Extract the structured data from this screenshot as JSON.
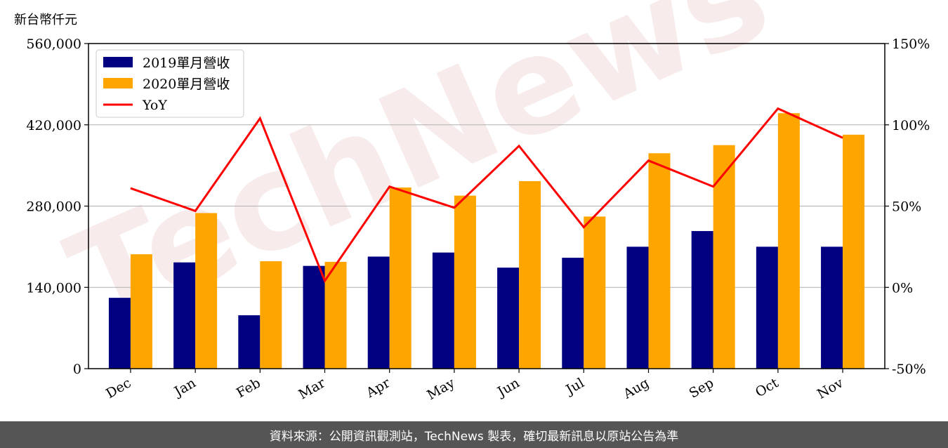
{
  "unit_label": "新台幣仟元",
  "footer_text": "資料來源：公開資訊觀測站，TechNews 製表，確切最新訊息以原站公告為準",
  "watermark_text": "TechNews",
  "colors": {
    "bar_2019": "#000080",
    "bar_2020": "#ffa500",
    "line_yoy": "#ff0000",
    "grid": "#b0b0b0",
    "footer_bg": "#555555"
  },
  "chart_data": {
    "type": "bar",
    "categories": [
      "Dec",
      "Jan",
      "Feb",
      "Mar",
      "Apr",
      "May",
      "Jun",
      "Jul",
      "Aug",
      "Sep",
      "Oct",
      "Nov"
    ],
    "series": [
      {
        "name": "2019單月營收",
        "type": "bar",
        "axis": "left",
        "color": "#000080",
        "values": [
          122000,
          183000,
          92000,
          177000,
          193000,
          200000,
          174000,
          191000,
          210000,
          237000,
          210000,
          210000
        ]
      },
      {
        "name": "2020單月營收",
        "type": "bar",
        "axis": "left",
        "color": "#ffa500",
        "values": [
          197000,
          268000,
          185000,
          184000,
          312000,
          298000,
          323000,
          262000,
          371000,
          385000,
          440000,
          403000
        ]
      },
      {
        "name": "YoY",
        "type": "line",
        "axis": "right",
        "color": "#ff0000",
        "values": [
          61,
          47,
          104,
          4,
          62,
          49,
          87,
          37,
          78,
          62,
          110,
          92
        ]
      }
    ],
    "y_left": {
      "ylim": [
        0,
        560000
      ],
      "ticks": [
        0,
        140000,
        280000,
        420000,
        560000
      ],
      "tick_labels": [
        "0",
        "140,000",
        "280,000",
        "420,000",
        "560,000"
      ]
    },
    "y_right": {
      "ylim": [
        -50,
        150
      ],
      "ticks": [
        -50,
        0,
        50,
        100,
        150
      ],
      "tick_labels": [
        "-50%",
        "0%",
        "50%",
        "100%",
        "150%"
      ]
    },
    "grid": true,
    "legend_position": "top-left"
  }
}
